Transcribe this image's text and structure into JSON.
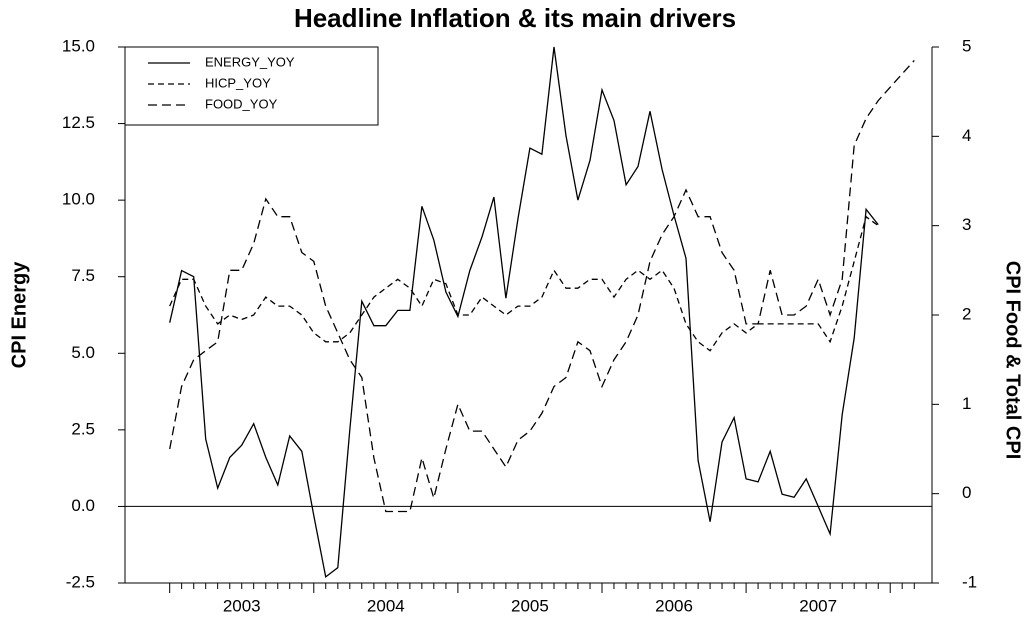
{
  "chart_data": {
    "type": "line",
    "title": "Headline Inflation & its main drivers",
    "ylabel": "CPI Energy",
    "y2label": "CPI Food & Total CPI",
    "x": [
      2003,
      2003.083,
      2003.167,
      2003.25,
      2003.333,
      2003.417,
      2003.5,
      2003.583,
      2003.667,
      2003.75,
      2003.833,
      2003.917,
      2004,
      2004.083,
      2004.167,
      2004.25,
      2004.333,
      2004.417,
      2004.5,
      2004.583,
      2004.667,
      2004.75,
      2004.833,
      2004.917,
      2005,
      2005.083,
      2005.167,
      2005.25,
      2005.333,
      2005.417,
      2005.5,
      2005.583,
      2005.667,
      2005.75,
      2005.833,
      2005.917,
      2006,
      2006.083,
      2006.167,
      2006.25,
      2006.333,
      2006.417,
      2006.5,
      2006.583,
      2006.667,
      2006.75,
      2006.833,
      2006.917,
      2007,
      2007.083,
      2007.167,
      2007.25,
      2007.333,
      2007.417,
      2007.5,
      2007.583,
      2007.667,
      2007.75,
      2007.833,
      2007.917,
      2008,
      2008.083,
      2008.167
    ],
    "series": [
      {
        "name": "ENERGY_YOY",
        "color": "#000000",
        "dash": "none",
        "axis": "y",
        "values": [
          6.0,
          7.7,
          7.5,
          2.2,
          0.6,
          1.6,
          2.0,
          2.7,
          1.6,
          0.7,
          2.3,
          1.8,
          -0.3,
          -2.3,
          -2.0,
          2.5,
          6.7,
          5.9,
          5.9,
          6.4,
          6.4,
          9.8,
          8.7,
          7.0,
          6.2,
          7.7,
          8.8,
          10.1,
          6.8,
          9.4,
          11.7,
          11.5,
          15.0,
          12.1,
          10.0,
          11.3,
          13.6,
          12.6,
          10.5,
          11.1,
          12.9,
          11.0,
          9.5,
          8.1,
          1.5,
          -0.5,
          2.1,
          2.9,
          0.9,
          0.8,
          1.8,
          0.4,
          0.3,
          0.9,
          0.0,
          -0.9,
          3.0,
          5.5,
          9.7,
          9.2,
          null,
          null,
          null
        ]
      },
      {
        "name": "HICP_YOY",
        "color": "#000000",
        "dash": "6,4",
        "axis": "y2",
        "values": [
          2.1,
          2.4,
          2.4,
          2.1,
          1.9,
          2.0,
          1.95,
          2.0,
          2.2,
          2.1,
          2.1,
          2.0,
          1.8,
          1.7,
          1.7,
          1.8,
          2.0,
          2.2,
          2.3,
          2.4,
          2.3,
          2.1,
          2.4,
          2.35,
          2.0,
          2.0,
          2.2,
          2.1,
          2.0,
          2.1,
          2.1,
          2.2,
          2.5,
          2.3,
          2.3,
          2.4,
          2.4,
          2.2,
          2.4,
          2.5,
          2.4,
          2.5,
          2.3,
          1.9,
          1.7,
          1.6,
          1.8,
          1.9,
          1.8,
          1.9,
          1.9,
          1.9,
          1.9,
          1.9,
          1.9,
          1.7,
          2.1,
          2.6,
          3.1,
          3.0,
          null,
          null,
          null
        ]
      },
      {
        "name": "FOOD_YOY",
        "color": "#000000",
        "dash": "9,5",
        "axis": "y2",
        "values": [
          0.5,
          1.2,
          1.5,
          1.6,
          1.7,
          2.5,
          2.5,
          2.8,
          3.3,
          3.1,
          3.1,
          2.7,
          2.6,
          2.1,
          1.8,
          1.5,
          1.3,
          0.4,
          -0.2,
          -0.2,
          -0.2,
          0.4,
          -0.05,
          0.5,
          1.0,
          0.7,
          0.7,
          0.5,
          0.3,
          0.6,
          0.7,
          0.9,
          1.2,
          1.3,
          1.7,
          1.6,
          1.2,
          1.5,
          1.7,
          2.0,
          2.6,
          2.9,
          3.1,
          3.4,
          3.1,
          3.1,
          2.7,
          2.5,
          1.9,
          1.9,
          2.5,
          2.0,
          2.0,
          2.1,
          2.4,
          2.0,
          2.4,
          3.9,
          4.2,
          4.4,
          4.55,
          4.7,
          4.85
        ]
      }
    ],
    "xlim": [
      2002.69,
      2008.29
    ],
    "xticks": [
      {
        "value": 2003.5,
        "label": "2003"
      },
      {
        "value": 2004.5,
        "label": "2004"
      },
      {
        "value": 2005.5,
        "label": "2005"
      },
      {
        "value": 2006.5,
        "label": "2006"
      },
      {
        "value": 2007.5,
        "label": "2007"
      }
    ],
    "ylim": [
      -2.5,
      15
    ],
    "yticks": [
      {
        "value": 15,
        "label": "15.0"
      },
      {
        "value": 12.5,
        "label": "12.5"
      },
      {
        "value": 10,
        "label": "10.0"
      },
      {
        "value": 7.5,
        "label": "7.5"
      },
      {
        "value": 5,
        "label": "5.0"
      },
      {
        "value": 2.5,
        "label": "2.5"
      },
      {
        "value": 0,
        "label": "0.0"
      },
      {
        "value": -2.5,
        "label": "-2.5"
      }
    ],
    "y2lim": [
      -1,
      5
    ],
    "y2ticks": [
      -1,
      0,
      1,
      2,
      3,
      4,
      5
    ],
    "legend": "upper left"
  }
}
